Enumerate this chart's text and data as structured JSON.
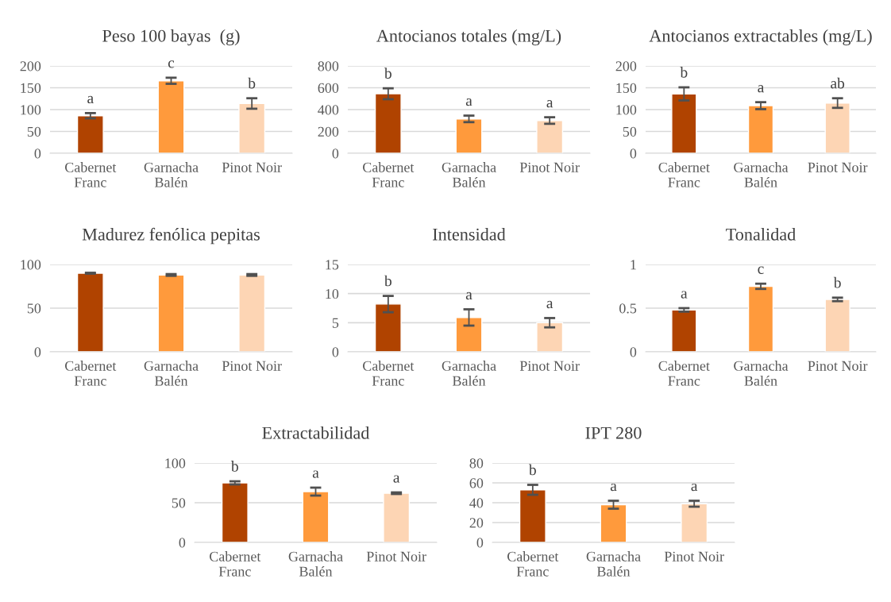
{
  "chart_data": [
    {
      "type": "bar",
      "title": "Peso 100 bayas  (g)",
      "categories": [
        "Cabernet Franc",
        "Garnacha Balén",
        "Pinot Noir"
      ],
      "colors": [
        "#b04300",
        "#ff9a3c",
        "#fdd5b4"
      ],
      "values": [
        86,
        166,
        114
      ],
      "errors": [
        6,
        7,
        12
      ],
      "ylim": [
        0,
        200
      ],
      "yticks": [
        0,
        50,
        100,
        150,
        200
      ],
      "grid": "y",
      "annotations": [
        "a",
        "c",
        "b"
      ]
    },
    {
      "type": "bar",
      "title": "Antocianos totales (mg/L)",
      "categories": [
        "Cabernet Franc",
        "Garnacha Balén",
        "Pinot Noir"
      ],
      "colors": [
        "#b04300",
        "#ff9a3c",
        "#fdd5b4"
      ],
      "values": [
        545,
        315,
        300
      ],
      "errors": [
        50,
        30,
        30
      ],
      "ylim": [
        0,
        800
      ],
      "yticks": [
        0,
        200,
        400,
        600,
        800
      ],
      "grid": "y",
      "annotations": [
        "b",
        "a",
        "a"
      ]
    },
    {
      "type": "bar",
      "title": "Antocianos extractables (mg/L)",
      "categories": [
        "Cabernet Franc",
        "Garnacha Balén",
        "Pinot Noir"
      ],
      "colors": [
        "#b04300",
        "#ff9a3c",
        "#fdd5b4"
      ],
      "values": [
        136,
        109,
        115
      ],
      "errors": [
        15,
        8,
        11
      ],
      "ylim": [
        0,
        200
      ],
      "yticks": [
        0,
        50,
        100,
        150,
        200
      ],
      "grid": "y",
      "annotations": [
        "b",
        "a",
        "ab"
      ]
    },
    {
      "type": "bar",
      "title": "Madurez fenólica pepitas",
      "categories": [
        "Cabernet Franc",
        "Garnacha Balén",
        "Pinot Noir"
      ],
      "colors": [
        "#b04300",
        "#ff9a3c",
        "#fdd5b4"
      ],
      "values": [
        90,
        88,
        88
      ],
      "errors": [
        0.5,
        1,
        1
      ],
      "ylim": [
        0,
        100
      ],
      "yticks": [
        0,
        50,
        100
      ],
      "grid": "y"
    },
    {
      "type": "bar",
      "title": "Intensidad",
      "categories": [
        "Cabernet Franc",
        "Garnacha Balén",
        "Pinot Noir"
      ],
      "colors": [
        "#b04300",
        "#ff9a3c",
        "#fdd5b4"
      ],
      "values": [
        8.2,
        5.9,
        5.0
      ],
      "errors": [
        1.4,
        1.4,
        0.8
      ],
      "ylim": [
        0,
        15
      ],
      "yticks": [
        0,
        5,
        10,
        15
      ],
      "grid": "y",
      "annotations": [
        "b",
        "a",
        "a"
      ]
    },
    {
      "type": "bar",
      "title": "Tonalidad",
      "categories": [
        "Cabernet Franc",
        "Garnacha Balén",
        "Pinot Noir"
      ],
      "colors": [
        "#b04300",
        "#ff9a3c",
        "#fdd5b4"
      ],
      "values": [
        0.48,
        0.75,
        0.6
      ],
      "errors": [
        0.02,
        0.03,
        0.02
      ],
      "ylim": [
        0,
        1
      ],
      "yticks": [
        0,
        0.5,
        1
      ],
      "grid": "y",
      "annotations": [
        "a",
        "c",
        "b"
      ]
    },
    {
      "type": "bar",
      "title": "Extractabilidad",
      "categories": [
        "Cabernet Franc",
        "Garnacha Balén",
        "Pinot Noir"
      ],
      "colors": [
        "#b04300",
        "#ff9a3c",
        "#fdd5b4"
      ],
      "values": [
        75,
        64,
        62
      ],
      "errors": [
        2,
        5,
        1
      ],
      "ylim": [
        0,
        100
      ],
      "yticks": [
        0,
        50,
        100
      ],
      "grid": "y",
      "annotations": [
        "b",
        "a",
        "a"
      ]
    },
    {
      "type": "bar",
      "title": "IPT 280",
      "categories": [
        "Cabernet Franc",
        "Garnacha Balén",
        "Pinot Noir"
      ],
      "colors": [
        "#b04300",
        "#ff9a3c",
        "#fdd5b4"
      ],
      "values": [
        53,
        38,
        39
      ],
      "errors": [
        5,
        4,
        3
      ],
      "ylim": [
        0,
        80
      ],
      "yticks": [
        0,
        20,
        40,
        60,
        80
      ],
      "grid": "y",
      "annotations": [
        "b",
        "a",
        "a"
      ]
    }
  ]
}
